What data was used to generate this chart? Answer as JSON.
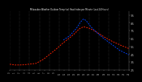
{
  "title": "Milwaukee Weather Outdoor Temp (vs) Heat Index per Minute (Last 24 Hours)",
  "bg_color": "#000000",
  "plot_bg_color": "#000000",
  "grid_color": "#555555",
  "line1_color": "#ff2200",
  "line2_color": "#0044ff",
  "ylabel_color": "#aaaaaa",
  "ylim": [
    25,
    100
  ],
  "yticks": [
    25,
    35,
    45,
    55,
    65,
    75,
    85,
    95
  ],
  "n_vgrid": 12,
  "temp_pts_x": [
    0.0,
    0.04,
    0.1,
    0.16,
    0.22,
    0.28,
    0.33,
    0.38,
    0.43,
    0.48,
    0.52,
    0.55,
    0.58,
    0.62,
    0.67,
    0.72,
    0.78,
    0.85,
    0.92,
    1.0
  ],
  "temp_pts_y": [
    32,
    31,
    31,
    32,
    33,
    38,
    44,
    50,
    57,
    63,
    68,
    72,
    77,
    80,
    78,
    74,
    68,
    62,
    57,
    52
  ],
  "heat_pts_x": [
    0.45,
    0.5,
    0.53,
    0.56,
    0.58,
    0.6,
    0.62,
    0.64,
    0.66,
    0.68,
    0.72,
    0.78,
    0.85,
    0.92,
    1.0
  ],
  "heat_pts_y": [
    63,
    68,
    73,
    78,
    83,
    87,
    90,
    88,
    84,
    80,
    74,
    66,
    58,
    50,
    44
  ]
}
